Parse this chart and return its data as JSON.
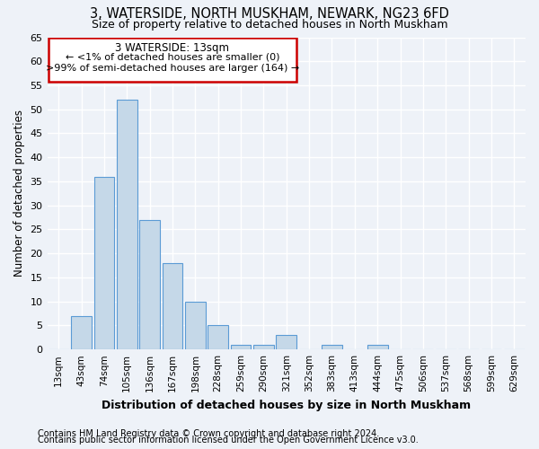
{
  "title1": "3, WATERSIDE, NORTH MUSKHAM, NEWARK, NG23 6FD",
  "title2": "Size of property relative to detached houses in North Muskham",
  "xlabel": "Distribution of detached houses by size in North Muskham",
  "ylabel": "Number of detached properties",
  "categories": [
    "13sqm",
    "43sqm",
    "74sqm",
    "105sqm",
    "136sqm",
    "167sqm",
    "198sqm",
    "228sqm",
    "259sqm",
    "290sqm",
    "321sqm",
    "352sqm",
    "383sqm",
    "413sqm",
    "444sqm",
    "475sqm",
    "506sqm",
    "537sqm",
    "568sqm",
    "599sqm",
    "629sqm"
  ],
  "values": [
    0,
    7,
    36,
    52,
    27,
    18,
    10,
    5,
    1,
    1,
    3,
    0,
    1,
    0,
    1,
    0,
    0,
    0,
    0,
    0,
    0
  ],
  "bar_color": "#c5d8e8",
  "bar_edge_color": "#5b9bd5",
  "ylim": [
    0,
    65
  ],
  "yticks": [
    0,
    5,
    10,
    15,
    20,
    25,
    30,
    35,
    40,
    45,
    50,
    55,
    60,
    65
  ],
  "annotation_line1": "3 WATERSIDE: 13sqm",
  "annotation_line2": "← <1% of detached houses are smaller (0)",
  "annotation_line3": ">99% of semi-detached houses are larger (164) →",
  "annotation_box_color": "#ffffff",
  "annotation_box_edge": "#cc0000",
  "footer1": "Contains HM Land Registry data © Crown copyright and database right 2024.",
  "footer2": "Contains public sector information licensed under the Open Government Licence v3.0.",
  "bg_color": "#eef2f8",
  "grid_color": "#ffffff"
}
